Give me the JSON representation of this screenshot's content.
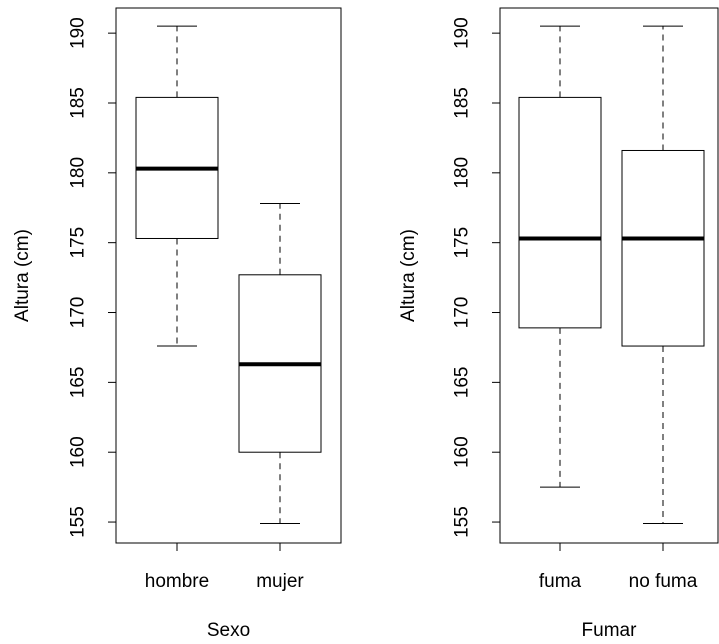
{
  "chart_data": [
    {
      "type": "boxplot",
      "title": "",
      "xlabel": "Sexo",
      "ylabel": "Altura (cm)",
      "ylim": [
        153.5,
        191.8
      ],
      "yticks": [
        "155",
        "160",
        "165",
        "170",
        "175",
        "180",
        "185",
        "190"
      ],
      "categories": [
        "hombre",
        "mujer"
      ],
      "boxes": [
        {
          "category": "hombre",
          "whisker_low": 167.6,
          "q1": 175.3,
          "median": 180.3,
          "q3": 185.4,
          "whisker_high": 190.5
        },
        {
          "category": "mujer",
          "whisker_low": 154.9,
          "q1": 160.0,
          "median": 166.3,
          "q3": 172.7,
          "whisker_high": 177.8
        }
      ]
    },
    {
      "type": "boxplot",
      "title": "",
      "xlabel": "Fumar",
      "ylabel": "Altura (cm)",
      "ylim": [
        153.5,
        191.8
      ],
      "yticks": [
        "155",
        "160",
        "165",
        "170",
        "175",
        "180",
        "185",
        "190"
      ],
      "categories": [
        "fuma",
        "no fuma"
      ],
      "boxes": [
        {
          "category": "fuma",
          "whisker_low": 157.5,
          "q1": 168.9,
          "median": 175.3,
          "q3": 185.4,
          "whisker_high": 190.5
        },
        {
          "category": "no fuma",
          "whisker_low": 154.9,
          "q1": 167.6,
          "median": 175.3,
          "q3": 181.6,
          "whisker_high": 190.5
        }
      ]
    }
  ]
}
